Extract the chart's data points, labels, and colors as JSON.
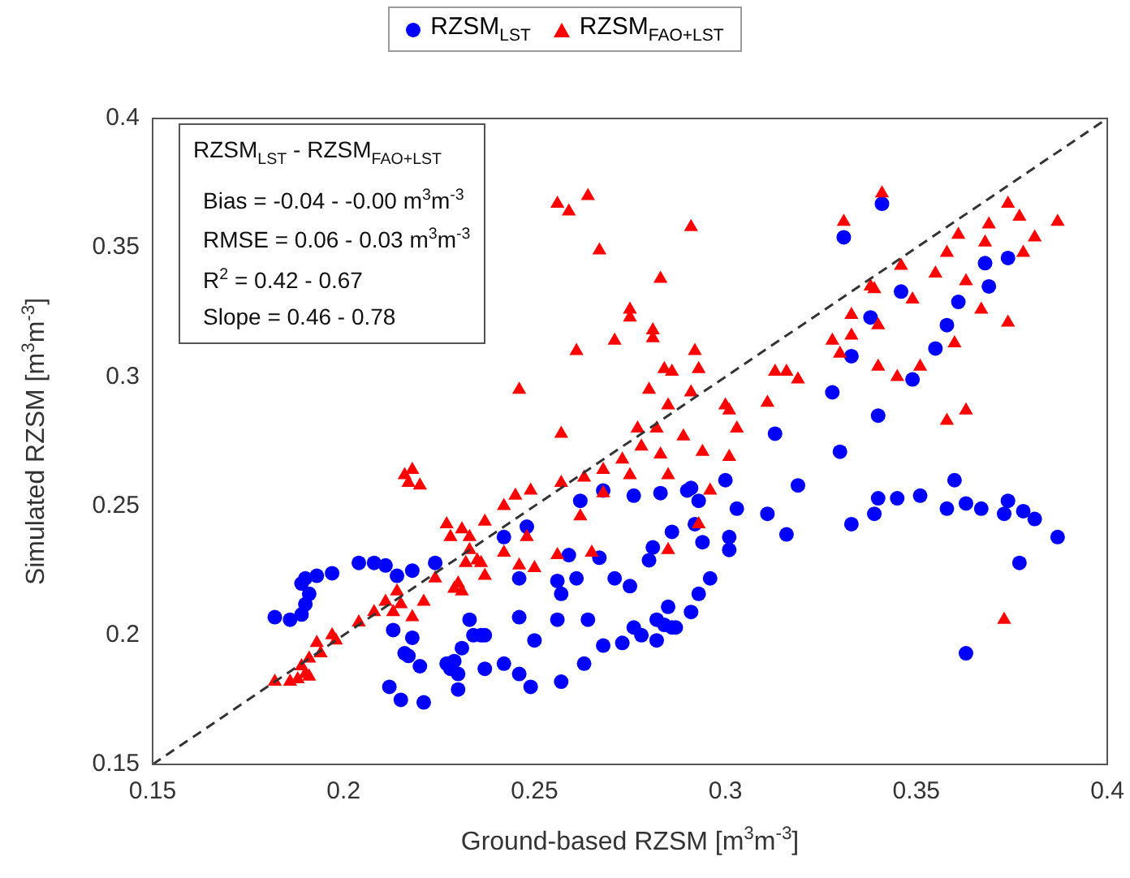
{
  "chart_data": {
    "type": "scatter",
    "xlabel": "Ground-based RZSM [m$^{3}$m$^{-3}$]",
    "ylabel": "Simulated RZSM [m$^{3}$m$^{-3}$]",
    "xlim": [
      0.15,
      0.4
    ],
    "xticks": [
      0.15,
      0.2,
      0.25,
      0.3,
      0.35,
      0.4
    ],
    "ylim": [
      0.15,
      0.4
    ],
    "yticks": [
      0.15,
      0.2,
      0.25,
      0.3,
      0.35,
      0.4
    ],
    "grid": false,
    "legend": "top",
    "annotations": [
      "RZSM$_{LST}$ - RZSM$_{FAO+LST}$",
      "Bias = -0.04  -  -0.00 m$^{3}$m$^{-3}$",
      "RMSE = 0.06  -  0.03 m$^{3}$m$^{-3}$",
      "R$^{2}$ = 0.42  -  0.67",
      "Slope = 0.46  -  0.78"
    ],
    "series": [
      {
        "name": "RZSM$_{LST}$",
        "color": "#0000ff",
        "marker": "circle",
        "x": [
          0.341,
          0.331,
          0.368,
          0.374,
          0.346,
          0.369,
          0.361,
          0.338,
          0.358,
          0.333,
          0.355,
          0.349,
          0.328,
          0.34,
          0.313,
          0.33,
          0.276,
          0.283,
          0.29,
          0.291,
          0.293,
          0.3,
          0.303,
          0.311,
          0.319,
          0.316,
          0.333,
          0.339,
          0.34,
          0.345,
          0.351,
          0.358,
          0.36,
          0.363,
          0.367,
          0.373,
          0.374,
          0.378,
          0.381,
          0.387,
          0.377,
          0.363,
          0.286,
          0.292,
          0.294,
          0.281,
          0.301,
          0.301,
          0.28,
          0.275,
          0.296,
          0.293,
          0.285,
          0.291,
          0.276,
          0.278,
          0.282,
          0.284,
          0.286,
          0.287,
          0.282,
          0.273,
          0.262,
          0.268,
          0.271,
          0.248,
          0.242,
          0.259,
          0.267,
          0.224,
          0.218,
          0.214,
          0.211,
          0.208,
          0.204,
          0.197,
          0.193,
          0.19,
          0.189,
          0.191,
          0.19,
          0.189,
          0.186,
          0.182,
          0.246,
          0.256,
          0.261,
          0.257,
          0.233,
          0.246,
          0.256,
          0.264,
          0.213,
          0.218,
          0.234,
          0.236,
          0.237,
          0.231,
          0.25,
          0.268,
          0.216,
          0.217,
          0.22,
          0.227,
          0.229,
          0.228,
          0.23,
          0.237,
          0.242,
          0.246,
          0.263,
          0.212,
          0.215,
          0.221,
          0.23,
          0.249,
          0.257
        ],
        "values": [
          0.367,
          0.354,
          0.344,
          0.346,
          0.333,
          0.335,
          0.329,
          0.323,
          0.32,
          0.308,
          0.311,
          0.299,
          0.294,
          0.285,
          0.278,
          0.271,
          0.254,
          0.255,
          0.256,
          0.257,
          0.252,
          0.26,
          0.249,
          0.247,
          0.258,
          0.239,
          0.243,
          0.247,
          0.253,
          0.253,
          0.254,
          0.249,
          0.26,
          0.251,
          0.249,
          0.247,
          0.252,
          0.248,
          0.245,
          0.238,
          0.228,
          0.193,
          0.24,
          0.243,
          0.236,
          0.234,
          0.238,
          0.233,
          0.229,
          0.219,
          0.222,
          0.216,
          0.211,
          0.209,
          0.203,
          0.2,
          0.206,
          0.204,
          0.203,
          0.203,
          0.198,
          0.197,
          0.252,
          0.256,
          0.222,
          0.242,
          0.238,
          0.231,
          0.23,
          0.228,
          0.225,
          0.223,
          0.227,
          0.228,
          0.228,
          0.224,
          0.223,
          0.222,
          0.22,
          0.216,
          0.212,
          0.208,
          0.206,
          0.207,
          0.222,
          0.221,
          0.222,
          0.216,
          0.206,
          0.207,
          0.206,
          0.206,
          0.202,
          0.199,
          0.2,
          0.2,
          0.2,
          0.195,
          0.198,
          0.196,
          0.193,
          0.192,
          0.188,
          0.189,
          0.19,
          0.187,
          0.185,
          0.187,
          0.189,
          0.185,
          0.189,
          0.18,
          0.175,
          0.174,
          0.179,
          0.18,
          0.182
        ]
      },
      {
        "name": "RZSM$_{FAO+LST}$",
        "color": "#ff0000",
        "marker": "triangle",
        "x": [
          0.256,
          0.259,
          0.264,
          0.267,
          0.261,
          0.271,
          0.246,
          0.341,
          0.331,
          0.291,
          0.374,
          0.377,
          0.369,
          0.387,
          0.361,
          0.368,
          0.381,
          0.378,
          0.358,
          0.283,
          0.346,
          0.355,
          0.338,
          0.339,
          0.363,
          0.349,
          0.275,
          0.275,
          0.281,
          0.281,
          0.333,
          0.367,
          0.34,
          0.374,
          0.333,
          0.328,
          0.33,
          0.36,
          0.292,
          0.284,
          0.286,
          0.293,
          0.313,
          0.316,
          0.319,
          0.34,
          0.345,
          0.351,
          0.28,
          0.291,
          0.285,
          0.3,
          0.301,
          0.311,
          0.358,
          0.363,
          0.277,
          0.282,
          0.289,
          0.303,
          0.273,
          0.278,
          0.283,
          0.294,
          0.301,
          0.275,
          0.285,
          0.296,
          0.293,
          0.285,
          0.373,
          0.257,
          0.216,
          0.218,
          0.217,
          0.22,
          0.257,
          0.263,
          0.268,
          0.262,
          0.268,
          0.249,
          0.245,
          0.242,
          0.227,
          0.228,
          0.231,
          0.233,
          0.237,
          0.248,
          0.242,
          0.233,
          0.235,
          0.232,
          0.236,
          0.237,
          0.246,
          0.25,
          0.256,
          0.265,
          0.224,
          0.23,
          0.231,
          0.229,
          0.221,
          0.214,
          0.211,
          0.215,
          0.213,
          0.218,
          0.208,
          0.204,
          0.197,
          0.198,
          0.193,
          0.194,
          0.191,
          0.189,
          0.19,
          0.188,
          0.186,
          0.182,
          0.191
        ],
        "values": [
          0.367,
          0.364,
          0.37,
          0.349,
          0.31,
          0.314,
          0.295,
          0.371,
          0.36,
          0.358,
          0.367,
          0.362,
          0.359,
          0.36,
          0.355,
          0.352,
          0.354,
          0.348,
          0.348,
          0.338,
          0.343,
          0.34,
          0.335,
          0.334,
          0.337,
          0.33,
          0.326,
          0.323,
          0.318,
          0.315,
          0.324,
          0.326,
          0.32,
          0.321,
          0.316,
          0.314,
          0.309,
          0.313,
          0.31,
          0.303,
          0.302,
          0.303,
          0.302,
          0.302,
          0.299,
          0.304,
          0.3,
          0.304,
          0.295,
          0.294,
          0.289,
          0.289,
          0.287,
          0.29,
          0.283,
          0.287,
          0.28,
          0.28,
          0.277,
          0.28,
          0.268,
          0.273,
          0.27,
          0.271,
          0.269,
          0.262,
          0.262,
          0.256,
          0.243,
          0.233,
          0.206,
          0.278,
          0.262,
          0.264,
          0.259,
          0.258,
          0.259,
          0.261,
          0.264,
          0.246,
          0.255,
          0.256,
          0.254,
          0.25,
          0.243,
          0.238,
          0.241,
          0.238,
          0.244,
          0.238,
          0.232,
          0.233,
          0.229,
          0.228,
          0.228,
          0.223,
          0.227,
          0.226,
          0.231,
          0.232,
          0.222,
          0.22,
          0.217,
          0.218,
          0.213,
          0.217,
          0.213,
          0.212,
          0.209,
          0.207,
          0.209,
          0.205,
          0.2,
          0.198,
          0.197,
          0.193,
          0.191,
          0.188,
          0.185,
          0.183,
          0.182,
          0.182,
          0.184
        ]
      },
      {
        "type": "line",
        "color": "#333333",
        "line_style": "dashed",
        "marker": "none",
        "x": [
          0.15,
          0.4
        ],
        "values": [
          0.15,
          0.4
        ]
      }
    ]
  }
}
